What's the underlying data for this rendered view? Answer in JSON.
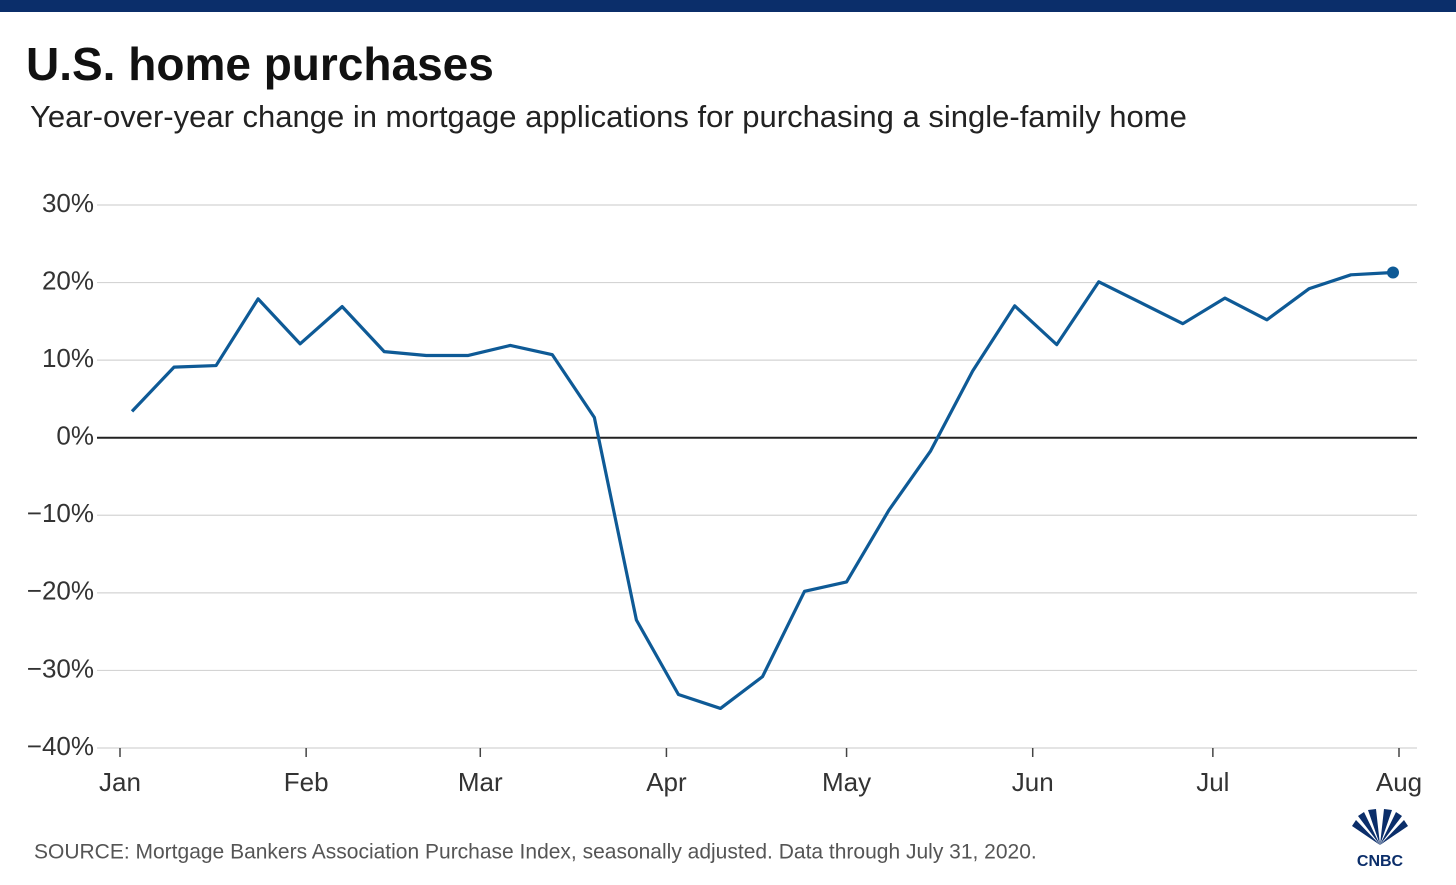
{
  "chart_data": {
    "type": "line",
    "title": "U.S. home purchases",
    "subtitle": "Year-over-year change in mortgage applications for purchasing a single-family home",
    "source": "SOURCE: Mortgage Bankers Association Purchase Index, seasonally adjusted. Data through July 31, 2020.",
    "x": [
      2,
      9,
      16,
      23,
      30,
      37,
      44,
      51,
      58,
      65,
      72,
      79,
      86,
      93,
      100,
      107,
      114,
      121,
      128,
      135,
      142,
      149,
      156,
      163,
      170,
      177,
      184,
      191,
      198,
      205,
      212
    ],
    "series": [
      {
        "name": "Purchase index",
        "color": "#0e5a96",
        "values": [
          3.4,
          9.1,
          9.3,
          17.9,
          12.1,
          16.9,
          11.1,
          10.6,
          10.6,
          11.9,
          10.7,
          2.6,
          -23.5,
          -33.1,
          -34.9,
          -30.8,
          -19.8,
          -18.6,
          -9.4,
          -1.7,
          8.6,
          17.0,
          12.0,
          20.1,
          17.4,
          14.7,
          18.0,
          15.2,
          19.2,
          21.0,
          21.3
        ]
      }
    ],
    "xlim": [
      0,
      213
    ],
    "xticks": [
      {
        "value": 0,
        "label": "Jan"
      },
      {
        "value": 31,
        "label": "Feb"
      },
      {
        "value": 60,
        "label": "Mar"
      },
      {
        "value": 91,
        "label": "Apr"
      },
      {
        "value": 121,
        "label": "May"
      },
      {
        "value": 152,
        "label": "Jun"
      },
      {
        "value": 182,
        "label": "Jul"
      },
      {
        "value": 213,
        "label": "Aug"
      }
    ],
    "ylim": [
      -40,
      30
    ],
    "yticks": [
      {
        "value": -40,
        "label": "−40%"
      },
      {
        "value": -30,
        "label": "−30%"
      },
      {
        "value": -20,
        "label": "−20%"
      },
      {
        "value": -10,
        "label": "−10%"
      },
      {
        "value": 0,
        "label": "0%"
      },
      {
        "value": 10,
        "label": "10%"
      },
      {
        "value": 20,
        "label": "20%"
      },
      {
        "value": 30,
        "label": "30%"
      }
    ],
    "grid": true
  },
  "logo": "CNBC"
}
